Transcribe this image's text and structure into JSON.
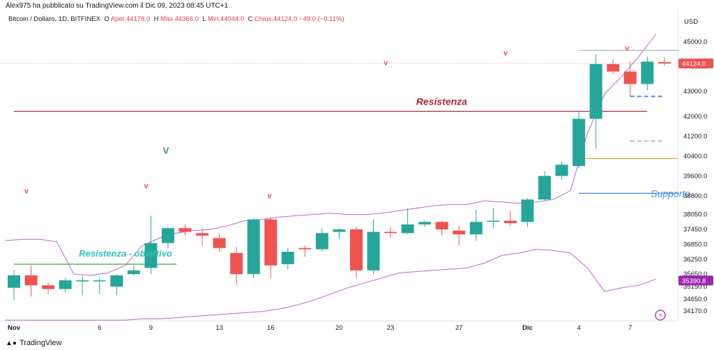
{
  "header": {
    "published": "Alex975 ha pubblicato su TradingView.com il Dic 09, 2023 08:45 UTC+1"
  },
  "legend": {
    "symbol": "Bitcoin / Dollaro, 1D, BITFINEX",
    "o_label": "O",
    "o_value": "Aper.44178.0",
    "h_label": "H",
    "h_value": "Max.44366.0",
    "l_label": "L",
    "l_value": "Min.44044.0",
    "c_label": "C",
    "c_value": "Chius.44124.0",
    "change": "−49.0 (−0.11%)"
  },
  "footer": {
    "brand": "TradingView"
  },
  "colors": {
    "up": "#26a69a",
    "down": "#ef5350",
    "band": "#ba68c8",
    "resistance": "#b2283a",
    "support": "#4a90e2",
    "target": "#4caf50",
    "orange": "#f5a623"
  },
  "chart_data": {
    "type": "candlestick",
    "currency": "USD",
    "ylim": [
      33900,
      45600
    ],
    "y_ticks": [
      "45000.0",
      "44000.0",
      "43000.0",
      "42000.0",
      "41200.0",
      "40400.0",
      "39600.0",
      "38800.0",
      "38050.0",
      "37450.0",
      "36850.0",
      "36250.0",
      "35650.0",
      "35150.0",
      "34650.0",
      "34170.0"
    ],
    "x_labels": [
      {
        "label": "Nov",
        "day": 0
      },
      {
        "label": "6",
        "day": 5
      },
      {
        "label": "9",
        "day": 8
      },
      {
        "label": "13",
        "day": 12
      },
      {
        "label": "16",
        "day": 15
      },
      {
        "label": "20",
        "day": 19
      },
      {
        "label": "23",
        "day": 22
      },
      {
        "label": "27",
        "day": 26
      },
      {
        "label": "Dic",
        "day": 30
      },
      {
        "label": "4",
        "day": 33
      },
      {
        "label": "7",
        "day": 36
      }
    ],
    "candles": [
      {
        "o": 35100,
        "h": 35800,
        "l": 34600,
        "c": 35600
      },
      {
        "o": 35600,
        "h": 36000,
        "l": 34750,
        "c": 35200
      },
      {
        "o": 35200,
        "h": 35300,
        "l": 34850,
        "c": 35050
      },
      {
        "o": 35050,
        "h": 35500,
        "l": 34900,
        "c": 35400
      },
      {
        "o": 35400,
        "h": 35550,
        "l": 34800,
        "c": 35400
      },
      {
        "o": 35400,
        "h": 35500,
        "l": 34850,
        "c": 35400
      },
      {
        "o": 35150,
        "h": 35650,
        "l": 34800,
        "c": 35600
      },
      {
        "o": 35650,
        "h": 36000,
        "l": 35600,
        "c": 35800
      },
      {
        "o": 35900,
        "h": 38000,
        "l": 35650,
        "c": 36900
      },
      {
        "o": 36900,
        "h": 37550,
        "l": 36700,
        "c": 37500
      },
      {
        "o": 37500,
        "h": 37650,
        "l": 37200,
        "c": 37350
      },
      {
        "o": 37300,
        "h": 37500,
        "l": 36800,
        "c": 37200
      },
      {
        "o": 37100,
        "h": 37300,
        "l": 36550,
        "c": 36700
      },
      {
        "o": 36500,
        "h": 36750,
        "l": 35200,
        "c": 35650
      },
      {
        "o": 35650,
        "h": 37900,
        "l": 35500,
        "c": 37850
      },
      {
        "o": 37850,
        "h": 37950,
        "l": 35500,
        "c": 36000
      },
      {
        "o": 36050,
        "h": 36700,
        "l": 35850,
        "c": 36550
      },
      {
        "o": 36700,
        "h": 36800,
        "l": 36350,
        "c": 36650
      },
      {
        "o": 36650,
        "h": 37500,
        "l": 36550,
        "c": 37300
      },
      {
        "o": 37350,
        "h": 37500,
        "l": 37050,
        "c": 37450
      },
      {
        "o": 37450,
        "h": 37550,
        "l": 35500,
        "c": 35800
      },
      {
        "o": 35800,
        "h": 37850,
        "l": 35650,
        "c": 37350
      },
      {
        "o": 37350,
        "h": 37550,
        "l": 37100,
        "c": 37300
      },
      {
        "o": 37300,
        "h": 38300,
        "l": 37250,
        "c": 37650
      },
      {
        "o": 37650,
        "h": 37800,
        "l": 37550,
        "c": 37750
      },
      {
        "o": 37750,
        "h": 37800,
        "l": 37200,
        "c": 37450
      },
      {
        "o": 37400,
        "h": 37600,
        "l": 36800,
        "c": 37250
      },
      {
        "o": 37250,
        "h": 38250,
        "l": 37000,
        "c": 37750
      },
      {
        "o": 37800,
        "h": 38300,
        "l": 37500,
        "c": 37800
      },
      {
        "o": 37800,
        "h": 38200,
        "l": 37600,
        "c": 37700
      },
      {
        "o": 37750,
        "h": 38700,
        "l": 37550,
        "c": 38650
      },
      {
        "o": 38650,
        "h": 39800,
        "l": 38600,
        "c": 39600
      },
      {
        "o": 39600,
        "h": 40200,
        "l": 39450,
        "c": 40050
      },
      {
        "o": 40000,
        "h": 42200,
        "l": 39900,
        "c": 41900
      },
      {
        "o": 41900,
        "h": 44500,
        "l": 40700,
        "c": 44100
      },
      {
        "o": 44100,
        "h": 44300,
        "l": 43700,
        "c": 43800
      },
      {
        "o": 43800,
        "h": 44200,
        "l": 42800,
        "c": 43300
      },
      {
        "o": 43300,
        "h": 44400,
        "l": 43050,
        "c": 44200
      },
      {
        "o": 44178,
        "h": 44366,
        "l": 44044,
        "c": 44124
      }
    ],
    "upper_band": [
      37000,
      37050,
      37050,
      36950,
      35650,
      35600,
      35700,
      36000,
      36800,
      37100,
      37300,
      37400,
      37450,
      37600,
      37800,
      37850,
      37950,
      38000,
      38050,
      38100,
      38050,
      38050,
      38100,
      38200,
      38300,
      38400,
      38450,
      38450,
      38600,
      38550,
      38500,
      38550,
      38650,
      39000,
      41300,
      42900,
      43600,
      44400,
      45300
    ],
    "lower_band": [
      33800,
      33800,
      33800,
      33800,
      33800,
      33800,
      33800,
      33800,
      33850,
      33850,
      33900,
      33950,
      34000,
      34050,
      34100,
      34150,
      34250,
      34400,
      34600,
      34850,
      35100,
      35300,
      35500,
      35700,
      35750,
      35800,
      35850,
      35900,
      36100,
      36400,
      36500,
      36650,
      36600,
      36500,
      35900,
      34950,
      35100,
      35200,
      35450
    ],
    "last_price": "44124.0",
    "last_band": "35390.8",
    "levels": [
      {
        "name": "Resistenza",
        "value": 42200,
        "from": 0,
        "to": 37,
        "style": "solid",
        "color": "#b2283a"
      },
      {
        "name": "Resistenza - obiettivo",
        "value": 36050,
        "from": 0,
        "to": 9.5,
        "style": "solid",
        "color": "#4caf50"
      },
      {
        "name": "Supporto",
        "value": 38900,
        "from": 33,
        "to": 41,
        "style": "solid",
        "color": "#4a90e2"
      },
      {
        "name": "",
        "value": 40300,
        "from": 33,
        "to": 41,
        "style": "solid",
        "color": "#f5a623"
      },
      {
        "name": "",
        "value": 42800,
        "from": 36,
        "to": 38,
        "style": "dashed",
        "color": "#4a90e2"
      },
      {
        "name": "",
        "value": 41000,
        "from": 36,
        "to": 38,
        "style": "dashed",
        "color": "#bbbbbb"
      },
      {
        "name": "",
        "value": 44650,
        "from": 33,
        "to": 41,
        "style": "solid",
        "color": "#bbbbbb"
      }
    ],
    "annotations": [
      {
        "text": "Resistenza",
        "x": 23.5,
        "y": 42450,
        "color": "#b2283a",
        "italic": true,
        "bold": true,
        "size": 14
      },
      {
        "text": "Resistenza - obiettivo",
        "x": 3.8,
        "y": 36350,
        "color": "#2ec4b6",
        "italic": true,
        "bold": true,
        "size": 13
      },
      {
        "text": "Supporto",
        "x": 37.2,
        "y": 38750,
        "color": "#4a90e2",
        "italic": true,
        "bold": false,
        "size": 14
      },
      {
        "text": "V",
        "x": 8.7,
        "y": 40500,
        "color": "#3a8f5a",
        "italic": false,
        "bold": true,
        "size": 13
      },
      {
        "text": "v",
        "x": 0.6,
        "y": 38900,
        "color": "#ef5350",
        "italic": false,
        "bold": true,
        "size": 11
      },
      {
        "text": "v",
        "x": 7.6,
        "y": 39100,
        "color": "#ef5350",
        "italic": false,
        "bold": true,
        "size": 11
      },
      {
        "text": "v",
        "x": 14.8,
        "y": 38700,
        "color": "#ef5350",
        "italic": false,
        "bold": true,
        "size": 11
      },
      {
        "text": "v",
        "x": 21.6,
        "y": 44050,
        "color": "#ef5350",
        "italic": false,
        "bold": true,
        "size": 11
      },
      {
        "text": "v",
        "x": 28.6,
        "y": 44450,
        "color": "#ef5350",
        "italic": false,
        "bold": true,
        "size": 11
      },
      {
        "text": "v",
        "x": 35.7,
        "y": 44650,
        "color": "#ef5350",
        "italic": false,
        "bold": true,
        "size": 11
      }
    ]
  }
}
